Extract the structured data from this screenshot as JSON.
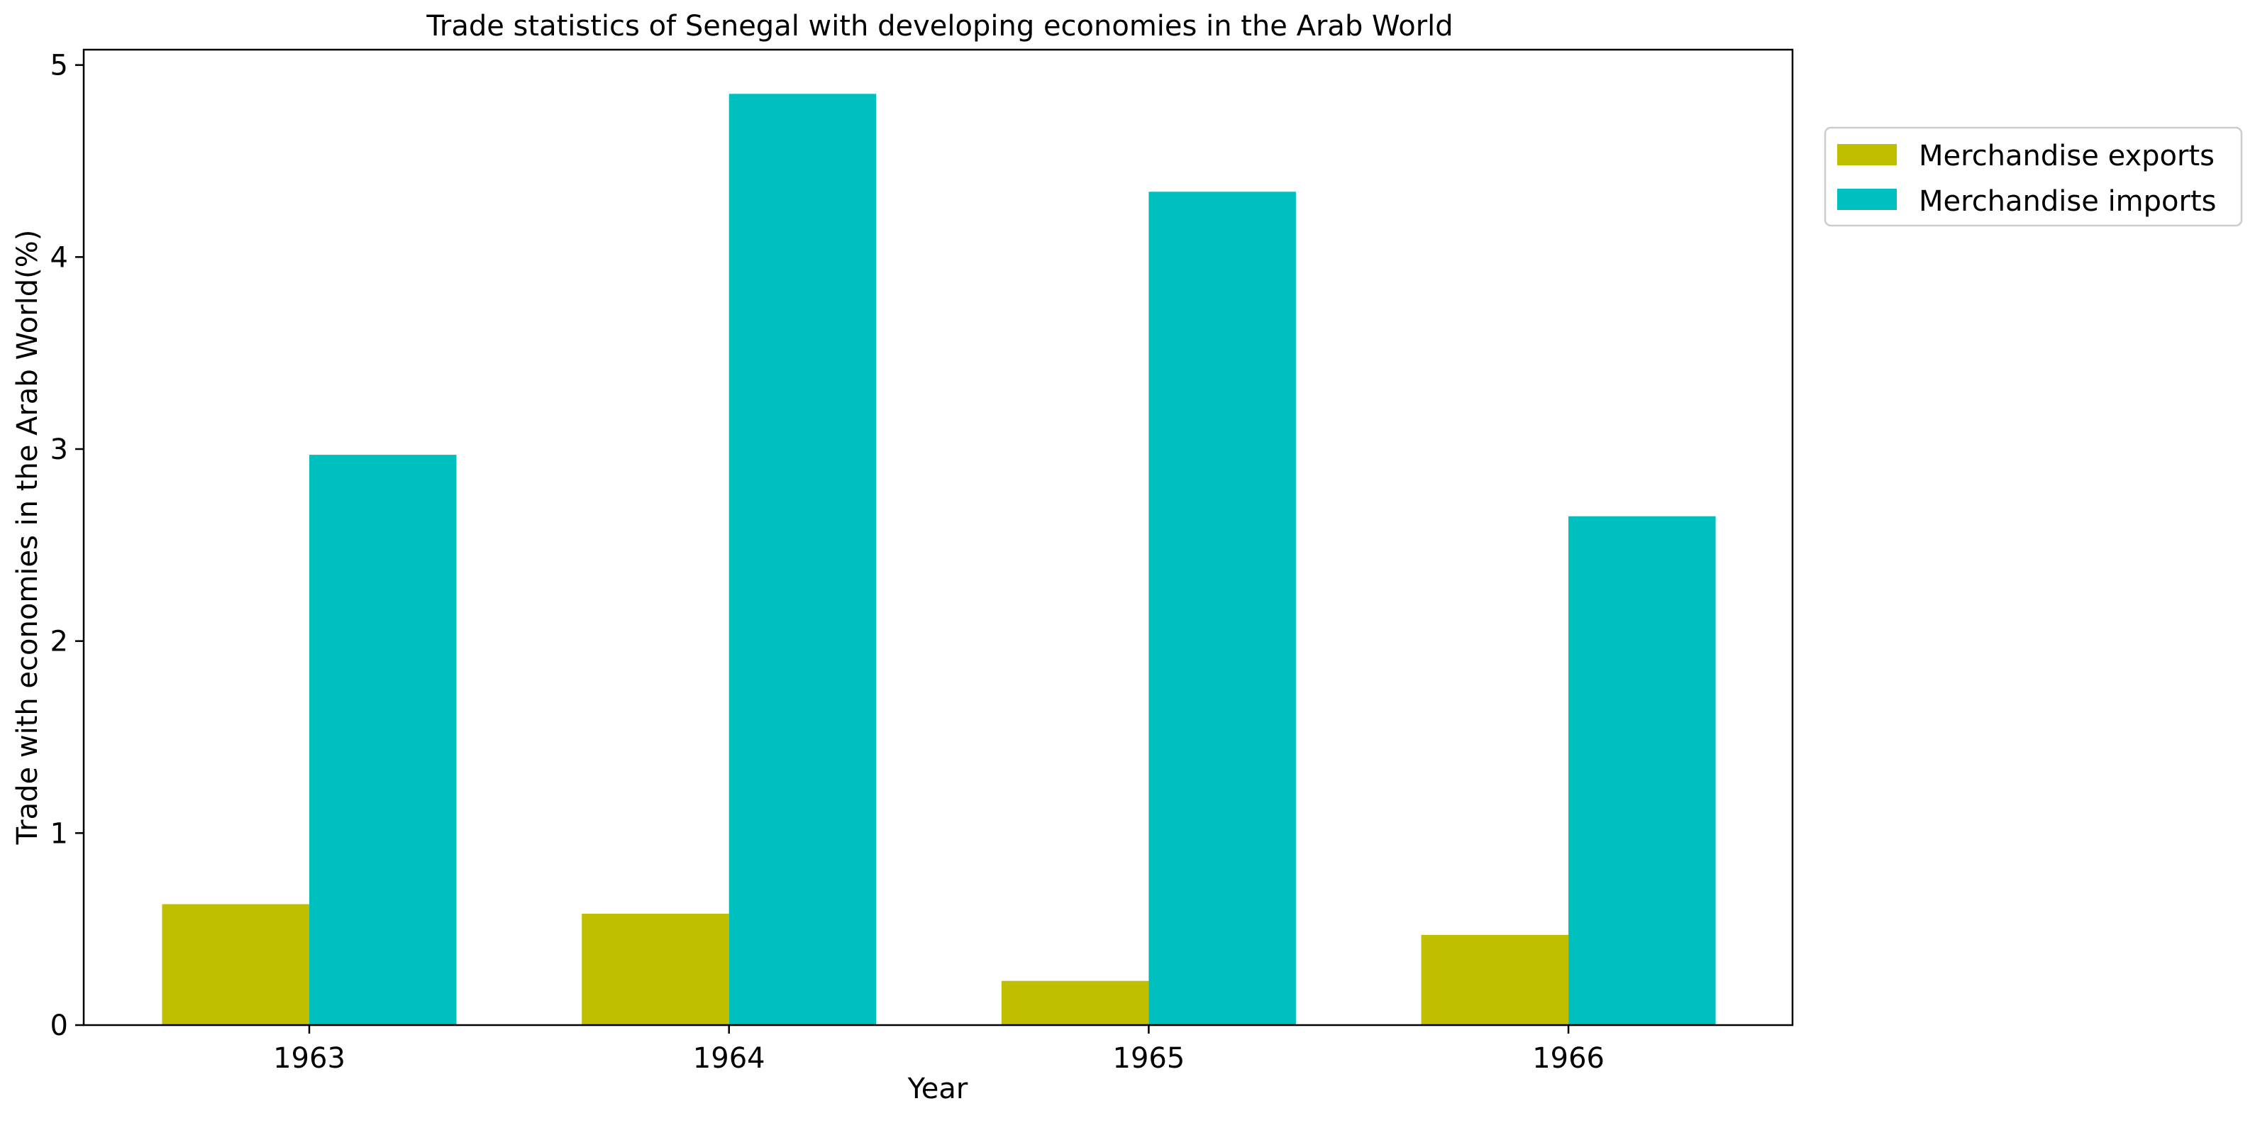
{
  "chart_data": {
    "type": "bar",
    "title": "Trade statistics of Senegal with developing economies in the Arab World",
    "xlabel": "Year",
    "ylabel": "Trade with economies in the Arab World(%)",
    "categories": [
      "1963",
      "1964",
      "1965",
      "1966"
    ],
    "series": [
      {
        "name": "Merchandise exports",
        "color": "#bfbf00",
        "values": [
          0.63,
          0.58,
          0.23,
          0.47
        ]
      },
      {
        "name": "Merchandise imports",
        "color": "#00bfbf",
        "values": [
          2.97,
          4.85,
          4.34,
          2.65
        ]
      }
    ],
    "ylim": [
      0,
      5.08
    ],
    "yticks": [
      0,
      1,
      2,
      3,
      4,
      5
    ],
    "grid": false,
    "legend_position": "outside-top-right"
  }
}
